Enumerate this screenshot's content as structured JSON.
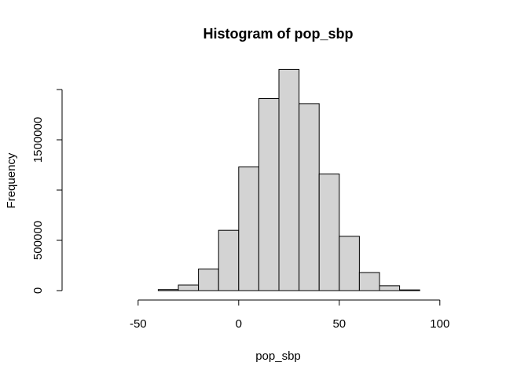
{
  "chart_data": {
    "type": "bar",
    "title": "Histogram of pop_sbp",
    "xlabel": "pop_sbp",
    "ylabel": "Frequency",
    "xlim": [
      -80,
      120
    ],
    "ylim": [
      0,
      2000000
    ],
    "xticks": [
      -50,
      0,
      50,
      100
    ],
    "xtick_labels": [
      "-50",
      "0",
      "50",
      "100"
    ],
    "yticks": [
      0,
      500000,
      1000000,
      1500000,
      2000000
    ],
    "ytick_labels": [
      "0",
      "500000",
      "",
      "1500000",
      ""
    ],
    "bins": [
      {
        "x0": -70,
        "x1": -60,
        "count": 0
      },
      {
        "x0": -60,
        "x1": -50,
        "count": 0
      },
      {
        "x0": -50,
        "x1": -40,
        "count": 0
      },
      {
        "x0": -40,
        "x1": -30,
        "count": 10000
      },
      {
        "x0": -30,
        "x1": -20,
        "count": 55000
      },
      {
        "x0": -20,
        "x1": -10,
        "count": 215000
      },
      {
        "x0": -10,
        "x1": 0,
        "count": 600000
      },
      {
        "x0": 0,
        "x1": 10,
        "count": 1230000
      },
      {
        "x0": 10,
        "x1": 20,
        "count": 1910000
      },
      {
        "x0": 20,
        "x1": 30,
        "count": 2200000
      },
      {
        "x0": 30,
        "x1": 40,
        "count": 1860000
      },
      {
        "x0": 40,
        "x1": 50,
        "count": 1160000
      },
      {
        "x0": 50,
        "x1": 60,
        "count": 540000
      },
      {
        "x0": 60,
        "x1": 70,
        "count": 180000
      },
      {
        "x0": 70,
        "x1": 80,
        "count": 48000
      },
      {
        "x0": 80,
        "x1": 90,
        "count": 7000
      },
      {
        "x0": 90,
        "x1": 100,
        "count": 0
      },
      {
        "x0": 100,
        "x1": 110,
        "count": 0
      },
      {
        "x0": 110,
        "x1": 120,
        "count": 0
      }
    ],
    "grid": false,
    "colors": {
      "bar_fill": "#d3d3d3",
      "bar_stroke": "#000000"
    }
  }
}
